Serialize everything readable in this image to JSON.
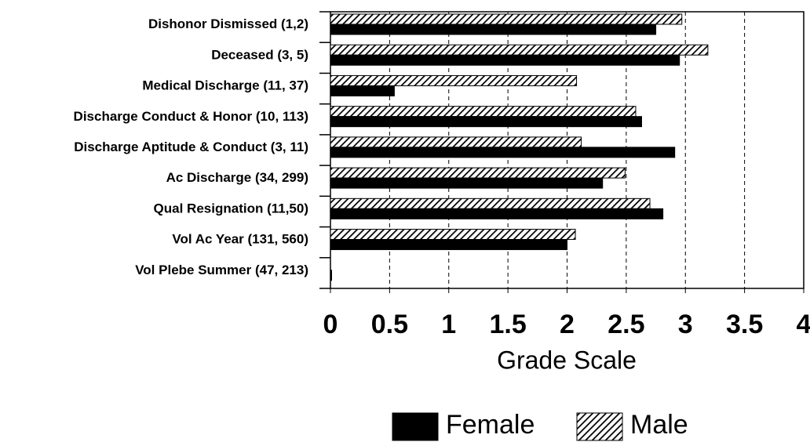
{
  "chart_data": {
    "type": "barh",
    "categories": [
      "Dishonor Dismissed (1,2)",
      "Deceased (3, 5)",
      "Medical Discharge (11, 37)",
      "Discharge Conduct & Honor (10, 113)",
      "Discharge Aptitude & Conduct (3, 11)",
      "Ac Discharge (34, 299)",
      "Qual Resignation (11,50)",
      "Vol Ac Year (131, 560)",
      "Vol Plebe Summer (47, 213)"
    ],
    "series": [
      {
        "name": "Female",
        "color": "#000000",
        "pattern": "solid",
        "values": [
          2.75,
          2.95,
          0.54,
          2.63,
          2.91,
          2.3,
          2.81,
          2.0,
          0.01
        ]
      },
      {
        "name": "Male",
        "color": "#000000",
        "pattern": "hatch",
        "values": [
          2.97,
          3.19,
          2.08,
          2.58,
          2.12,
          2.49,
          2.7,
          2.07,
          0
        ]
      }
    ],
    "xlabel": "Grade Scale",
    "xlim": [
      0,
      4
    ],
    "xticks": [
      0,
      0.5,
      1,
      1.5,
      2,
      2.5,
      3,
      3.5,
      4
    ],
    "grid": true,
    "legend": "bottom"
  }
}
